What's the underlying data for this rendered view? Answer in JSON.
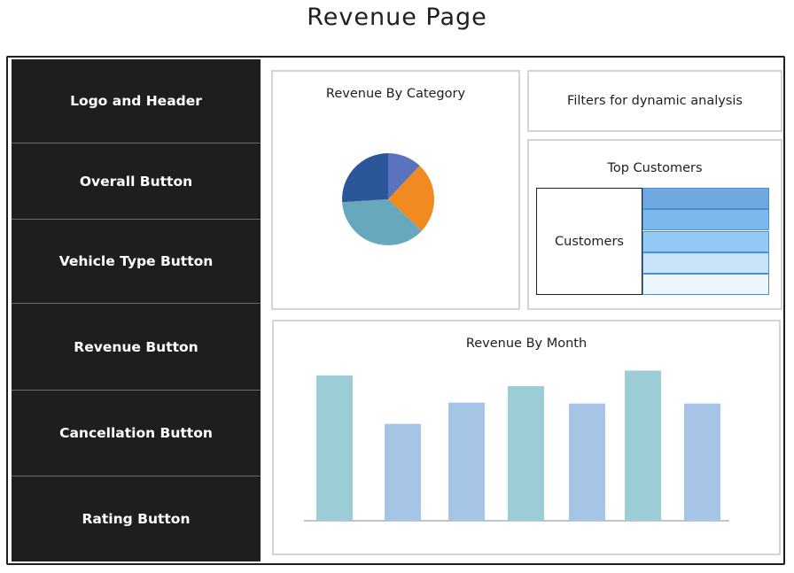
{
  "page": {
    "title": "Revenue Page"
  },
  "sidebar": {
    "items": [
      {
        "label": "Logo and Header"
      },
      {
        "label": "Overall Button"
      },
      {
        "label": "Vehicle Type Button"
      },
      {
        "label": "Revenue Button"
      },
      {
        "label": "Cancellation Button"
      },
      {
        "label": "Rating Button"
      }
    ]
  },
  "revenue_by_category": {
    "title": "Revenue By Category",
    "chart_data": {
      "type": "pie",
      "values": [
        12,
        25,
        37,
        26
      ],
      "colors": [
        "#5b72be",
        "#f28a22",
        "#67a8bd",
        "#2b579a"
      ]
    }
  },
  "filters": {
    "label": "Filters for dynamic analysis"
  },
  "top_customers": {
    "title": "Top Customers",
    "column_label": "Customers",
    "bar_colors": [
      "#6fa7df",
      "#7ab8ee",
      "#92c9f5",
      "#c9e3fb",
      "#eef6fd"
    ]
  },
  "revenue_by_month": {
    "title": "Revenue By Month",
    "chart_data": {
      "type": "bar",
      "values": [
        150,
        100,
        122,
        139,
        121,
        155,
        121
      ],
      "ylim": [
        0,
        160
      ],
      "colors": [
        "#9ccdd6",
        "#a6c5e6",
        "#a6c5e6",
        "#9ccdd6",
        "#a6c5e6",
        "#9ccdd6",
        "#a6c5e6"
      ]
    }
  }
}
